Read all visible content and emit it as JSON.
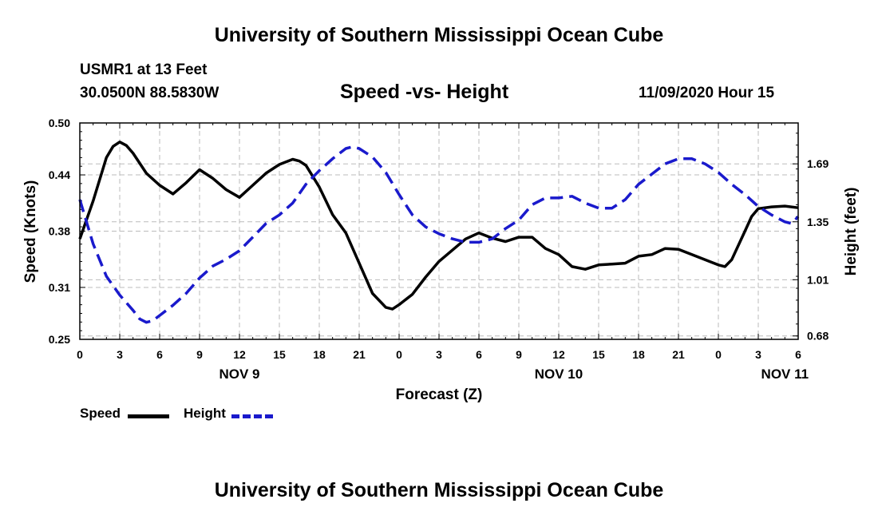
{
  "header": {
    "title": "University of Southern Mississippi Ocean Cube",
    "station": "USMR1 at 13 Feet",
    "coords": "30.0500N 88.5830W",
    "chart_title": "Speed -vs- Height",
    "datetime": "11/09/2020 Hour 15"
  },
  "footer": {
    "title": "University of Southern Mississippi Ocean Cube"
  },
  "legend": {
    "speed_label": "Speed",
    "height_label": "Height"
  },
  "colors": {
    "speed": "#000000",
    "height": "#1a1acc",
    "grid": "#bbbbbb"
  },
  "chart_data": {
    "type": "line",
    "title": "Speed -vs- Height",
    "xlabel": "Forecast (Z)",
    "ylabel": "Speed (Knots)",
    "ylabel_right": "Height (feet)",
    "x_hours_range": [
      0,
      54
    ],
    "xticks": [
      {
        "h": 0,
        "label": "0"
      },
      {
        "h": 3,
        "label": "3"
      },
      {
        "h": 6,
        "label": "6"
      },
      {
        "h": 9,
        "label": "9"
      },
      {
        "h": 12,
        "label": "12"
      },
      {
        "h": 15,
        "label": "15"
      },
      {
        "h": 18,
        "label": "18"
      },
      {
        "h": 21,
        "label": "21"
      },
      {
        "h": 24,
        "label": "0"
      },
      {
        "h": 27,
        "label": "3"
      },
      {
        "h": 30,
        "label": "6"
      },
      {
        "h": 33,
        "label": "9"
      },
      {
        "h": 36,
        "label": "12"
      },
      {
        "h": 39,
        "label": "15"
      },
      {
        "h": 42,
        "label": "18"
      },
      {
        "h": 45,
        "label": "21"
      },
      {
        "h": 48,
        "label": "0"
      },
      {
        "h": 51,
        "label": "3"
      },
      {
        "h": 54,
        "label": "6"
      }
    ],
    "day_labels": [
      {
        "h": 12,
        "label": "NOV 9"
      },
      {
        "h": 36,
        "label": "NOV 10"
      },
      {
        "h": 53,
        "label": "NOV 11"
      }
    ],
    "ylim_left": [
      0.25,
      0.5
    ],
    "yticks_left": [
      {
        "v": 0.25,
        "label": "0.25"
      },
      {
        "v": 0.31,
        "label": "0.31"
      },
      {
        "v": 0.375,
        "label": "0.38"
      },
      {
        "v": 0.44,
        "label": "0.44"
      },
      {
        "v": 0.5,
        "label": "0.50"
      }
    ],
    "ylim_right": [
      0.66,
      1.93
    ],
    "yticks_right": [
      {
        "v": 0.68,
        "label": "0.68"
      },
      {
        "v": 1.01,
        "label": "1.01"
      },
      {
        "v": 1.35,
        "label": "1.35"
      },
      {
        "v": 1.69,
        "label": "1.69"
      }
    ],
    "series": [
      {
        "name": "Speed",
        "axis": "left",
        "style": "solid",
        "x": [
          0,
          1,
          2,
          2.5,
          3,
          3.5,
          4,
          5,
          6,
          7,
          8,
          9,
          10,
          11,
          12,
          13,
          14,
          15,
          16,
          16.5,
          17,
          18,
          19,
          20,
          21,
          22,
          23,
          23.5,
          24,
          25,
          26,
          27,
          28,
          29,
          30,
          31,
          32,
          33,
          34,
          35,
          36,
          37,
          38,
          39,
          40,
          41,
          42,
          43,
          44,
          45,
          46,
          47,
          48,
          48.5,
          49,
          50,
          50.5,
          51,
          52,
          53,
          54
        ],
        "y": [
          0.366,
          0.41,
          0.46,
          0.473,
          0.478,
          0.474,
          0.465,
          0.442,
          0.428,
          0.418,
          0.431,
          0.446,
          0.436,
          0.423,
          0.414,
          0.428,
          0.442,
          0.452,
          0.458,
          0.456,
          0.451,
          0.426,
          0.394,
          0.373,
          0.338,
          0.303,
          0.287,
          0.285,
          0.29,
          0.302,
          0.322,
          0.34,
          0.353,
          0.366,
          0.373,
          0.367,
          0.363,
          0.368,
          0.368,
          0.355,
          0.348,
          0.334,
          0.331,
          0.336,
          0.337,
          0.338,
          0.346,
          0.348,
          0.355,
          0.354,
          0.348,
          0.342,
          0.336,
          0.334,
          0.342,
          0.375,
          0.392,
          0.401,
          0.403,
          0.404,
          0.402
        ]
      },
      {
        "name": "Height",
        "axis": "right",
        "style": "dashed",
        "x": [
          0,
          1,
          2,
          3,
          4,
          4.5,
          5,
          5.5,
          6,
          7,
          8,
          9,
          10,
          11,
          12,
          13,
          14,
          15,
          16,
          17,
          18,
          19,
          20,
          20.5,
          21,
          22,
          23,
          24,
          25,
          26,
          27,
          28,
          29,
          30,
          31,
          32,
          33,
          34,
          35,
          36,
          37,
          38,
          39,
          40,
          41,
          42,
          43,
          44,
          45,
          45.5,
          46,
          47,
          48,
          49,
          50,
          51,
          52,
          53,
          53.5,
          54
        ],
        "y": [
          1.48,
          1.22,
          1.03,
          0.92,
          0.83,
          0.78,
          0.76,
          0.77,
          0.8,
          0.86,
          0.93,
          1.02,
          1.09,
          1.13,
          1.18,
          1.26,
          1.34,
          1.39,
          1.46,
          1.57,
          1.65,
          1.72,
          1.78,
          1.79,
          1.78,
          1.73,
          1.64,
          1.51,
          1.39,
          1.32,
          1.28,
          1.25,
          1.23,
          1.23,
          1.25,
          1.31,
          1.36,
          1.45,
          1.49,
          1.49,
          1.5,
          1.46,
          1.43,
          1.43,
          1.48,
          1.57,
          1.63,
          1.69,
          1.72,
          1.72,
          1.72,
          1.69,
          1.64,
          1.57,
          1.51,
          1.44,
          1.39,
          1.35,
          1.34,
          1.38
        ]
      }
    ]
  }
}
